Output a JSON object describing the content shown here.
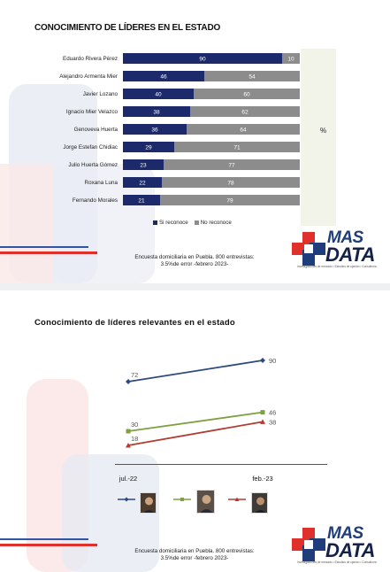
{
  "slide1": {
    "title": "CONOCIMIENTO DE LÍDERES EN EL ESTADO",
    "unit_label": "%",
    "note_line1": "Encuesta domiciliaria en Puebla. 800 entrevistas:",
    "note_line2": "3.5%de error -febrero 2023-",
    "chart_data": {
      "type": "bar",
      "orientation": "horizontal",
      "stacked": true,
      "categories": [
        "Eduardo Rivera Pérez",
        "Alejandro Armenta Mier",
        "Javier Lozano",
        "Ignacio Mier Velazco",
        "Genoveva Huerta",
        "Jorge Estefan Chidiac",
        "Julio Huerta Gómez",
        "Roxana Luna",
        "Fernando Morales"
      ],
      "series": [
        {
          "name": "Si reconoce",
          "color": "#1c2a6b",
          "values": [
            90,
            46,
            40,
            38,
            36,
            29,
            23,
            22,
            21
          ]
        },
        {
          "name": "No reconoce",
          "color": "#8c8c8c",
          "values": [
            10,
            54,
            60,
            62,
            64,
            71,
            77,
            78,
            79
          ]
        }
      ],
      "xlim": [
        0,
        100
      ],
      "legend_position": "bottom"
    }
  },
  "slide2": {
    "title": "Conocimiento de líderes relevantes en el estado",
    "note_line1": "Encuesta domiciliaria en Puebla. 800 entrevistas:",
    "note_line2": "3.5%de error -febrero 2023-",
    "chart_data": {
      "type": "line",
      "x": [
        "jul.-22",
        "feb.-23"
      ],
      "series": [
        {
          "color": "#2e4a7f",
          "marker": "diamond",
          "values": [
            72,
            90
          ]
        },
        {
          "color": "#7ea040",
          "marker": "square",
          "values": [
            30,
            46
          ]
        },
        {
          "color": "#b23c32",
          "marker": "triangle",
          "values": [
            18,
            38
          ]
        }
      ],
      "ylim": [
        0,
        100
      ],
      "grid": false,
      "legend_position": "bottom"
    }
  },
  "logo": {
    "line1": "MAS",
    "line2": "DATA",
    "tagline": "Investigaciones de mercado • Estudios de opinión • Consultoría",
    "colors": {
      "red": "#e0302b",
      "blue": "#1f3d7a"
    }
  }
}
